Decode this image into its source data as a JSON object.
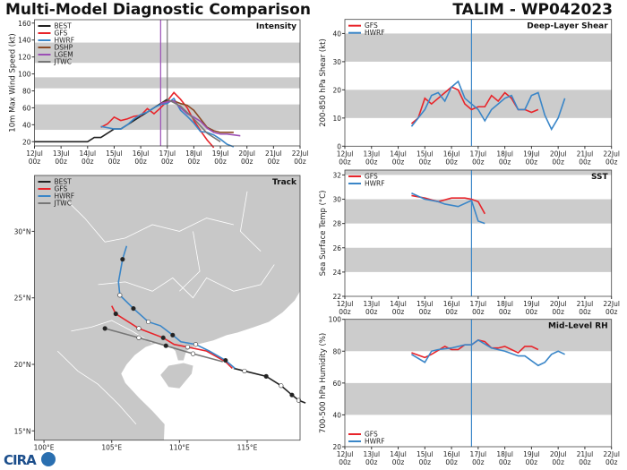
{
  "header": {
    "title": "Multi-Model Diagnostic Comparison",
    "storm": "TALIM - WP042023"
  },
  "logo": "CIRA",
  "colors": {
    "BEST": "#222222",
    "GFS": "#e8242a",
    "HWRF": "#3a86c8",
    "DSHP": "#8b4a25",
    "LGEM": "#9b4fb5",
    "JTWC": "#777777",
    "band": "#cccccc"
  },
  "x_ticks": [
    "12Jul 00z",
    "13Jul 00z",
    "14Jul 00z",
    "15Jul 00z",
    "16Jul 00z",
    "17Jul 00z",
    "18Jul 00z",
    "19Jul 00z",
    "20Jul 00z",
    "21Jul 00z",
    "22Jul 00z"
  ],
  "chart_data": [
    {
      "type": "line",
      "panel": "intensity",
      "title": "Intensity",
      "ylabel": "10m Max Wind Speed (kt)",
      "ylim": [
        15,
        164
      ],
      "yticks": [
        20,
        40,
        60,
        80,
        100,
        120,
        140,
        160
      ],
      "bands": [
        [
          34,
          64
        ],
        [
          83,
          96
        ],
        [
          113,
          137
        ]
      ],
      "vlines": [
        {
          "x": "16Jul18z",
          "color": "#9b4fb5"
        },
        {
          "x": "17Jul00z",
          "color": "#777777"
        }
      ],
      "legend": "top-left",
      "series": [
        {
          "name": "BEST",
          "x": [
            "12Jul00z",
            "13Jul00z",
            "14Jul00z",
            "14Jul06z",
            "14Jul12z",
            "14Jul18z",
            "15Jul00z",
            "15Jul06z",
            "15Jul12z",
            "15Jul18z",
            "16Jul00z",
            "16Jul06z",
            "16Jul12z",
            "16Jul18z",
            "17Jul00z"
          ],
          "y": [
            20,
            20,
            20,
            25,
            25,
            30,
            35,
            35,
            40,
            45,
            50,
            55,
            60,
            65,
            70
          ]
        },
        {
          "name": "GFS",
          "x": [
            "14Jul12z",
            "14Jul18z",
            "15Jul00z",
            "15Jul06z",
            "15Jul12z",
            "15Jul18z",
            "16Jul00z",
            "16Jul06z",
            "16Jul12z",
            "16Jul18z",
            "17Jul00z",
            "17Jul06z",
            "17Jul12z",
            "17Jul18z",
            "18Jul00z",
            "18Jul06z",
            "18Jul12z",
            "18Jul18z"
          ],
          "y": [
            37,
            41,
            49,
            45,
            47,
            50,
            51,
            59,
            53,
            60,
            68,
            78,
            70,
            60,
            45,
            33,
            22,
            13
          ]
        },
        {
          "name": "HWRF",
          "x": [
            "14Jul12z",
            "15Jul00z",
            "15Jul06z",
            "15Jul12z",
            "15Jul18z",
            "16Jul00z",
            "16Jul06z",
            "16Jul12z",
            "16Jul18z",
            "17Jul00z",
            "17Jul06z",
            "17Jul12z",
            "17Jul18z",
            "18Jul00z",
            "18Jul06z",
            "18Jul12z",
            "18Jul18z",
            "19Jul00z",
            "19Jul06z",
            "19Jul12z"
          ],
          "y": [
            38,
            35,
            35,
            40,
            47,
            52,
            55,
            60,
            64,
            65,
            71,
            57,
            50,
            42,
            32,
            31,
            28,
            23,
            17,
            14
          ]
        },
        {
          "name": "DSHP",
          "x": [
            "16Jul18z",
            "17Jul00z",
            "17Jul06z",
            "17Jul12z",
            "17Jul18z",
            "18Jul00z",
            "18Jul06z",
            "18Jul12z",
            "18Jul18z",
            "19Jul00z",
            "19Jul06z",
            "19Jul12z"
          ],
          "y": [
            65,
            68,
            68,
            65,
            63,
            57,
            47,
            37,
            33,
            31,
            31,
            31
          ]
        },
        {
          "name": "LGEM",
          "x": [
            "16Jul18z",
            "17Jul00z",
            "17Jul06z",
            "17Jul12z",
            "17Jul18z",
            "18Jul00z",
            "18Jul06z",
            "18Jul12z",
            "18Jul18z",
            "19Jul00z",
            "19Jul06z",
            "19Jul12z",
            "19Jul18z"
          ],
          "y": [
            65,
            67,
            68,
            60,
            53,
            49,
            44,
            36,
            31,
            29,
            29,
            28,
            27
          ]
        },
        {
          "name": "JTWC",
          "x": [
            "17Jul00z",
            "17Jul12z",
            "18Jul00z",
            "18Jul12z",
            "19Jul00z"
          ],
          "y": [
            70,
            62,
            47,
            30,
            20
          ]
        }
      ]
    },
    {
      "type": "line",
      "panel": "shear",
      "title": "Deep-Layer Shear",
      "ylabel": "200-850 hPa Shear (kt)",
      "ylim": [
        0,
        45
      ],
      "yticks": [
        0,
        10,
        20,
        30,
        40
      ],
      "bands": [
        [
          10,
          20
        ],
        [
          30,
          40
        ]
      ],
      "vlines": [
        {
          "x": "16Jul18z",
          "color": "#3a86c8"
        }
      ],
      "legend": "top-left",
      "series": [
        {
          "name": "GFS",
          "x": [
            "14Jul12z",
            "14Jul18z",
            "15Jul00z",
            "15Jul06z",
            "15Jul12z",
            "15Jul18z",
            "16Jul00z",
            "16Jul06z",
            "16Jul12z",
            "16Jul18z",
            "17Jul00z",
            "17Jul06z",
            "17Jul12z",
            "17Jul18z",
            "18Jul00z",
            "18Jul06z",
            "18Jul12z",
            "18Jul18z",
            "19Jul00z",
            "19Jul06z"
          ],
          "y": [
            8,
            10,
            17,
            15,
            17,
            19,
            21,
            20,
            15,
            13,
            14,
            14,
            18,
            16,
            19,
            17,
            13,
            13,
            12,
            13
          ]
        },
        {
          "name": "HWRF",
          "x": [
            "14Jul12z",
            "14Jul18z",
            "15Jul00z",
            "15Jul06z",
            "15Jul12z",
            "15Jul18z",
            "16Jul00z",
            "16Jul06z",
            "16Jul12z",
            "16Jul18z",
            "17Jul00z",
            "17Jul06z",
            "17Jul12z",
            "17Jul18z",
            "18Jul00z",
            "18Jul06z",
            "18Jul12z",
            "18Jul18z",
            "19Jul00z",
            "19Jul06z",
            "19Jul12z",
            "19Jul18z",
            "20Jul00z",
            "20Jul06z"
          ],
          "y": [
            7,
            10,
            13,
            18,
            19,
            16,
            21,
            23,
            17,
            15,
            13,
            9,
            13,
            15,
            17,
            18,
            13,
            13,
            18,
            19,
            11,
            6,
            10,
            17
          ]
        }
      ]
    },
    {
      "type": "line",
      "panel": "sst",
      "title": "SST",
      "ylabel": "Sea Surface Temp (°C)",
      "ylim": [
        22,
        32.4
      ],
      "yticks": [
        22,
        24,
        26,
        28,
        30,
        32
      ],
      "bands": [
        [
          24,
          26
        ],
        [
          28,
          30
        ],
        [
          32,
          32.4
        ]
      ],
      "vlines": [
        {
          "x": "16Jul18z",
          "color": "#3a86c8"
        }
      ],
      "legend": "top-left",
      "series": [
        {
          "name": "GFS",
          "x": [
            "14Jul12z",
            "15Jul00z",
            "15Jul12z",
            "16Jul00z",
            "16Jul12z",
            "16Jul18z",
            "17Jul00z",
            "17Jul06z"
          ],
          "y": [
            30.3,
            30.1,
            29.8,
            30.1,
            30.1,
            30.0,
            29.8,
            28.8
          ]
        },
        {
          "name": "HWRF",
          "x": [
            "14Jul12z",
            "15Jul00z",
            "15Jul12z",
            "15Jul18z",
            "16Jul06z",
            "16Jul18z",
            "17Jul00z",
            "17Jul06z"
          ],
          "y": [
            30.5,
            30.0,
            29.8,
            29.6,
            29.4,
            29.9,
            28.2,
            28.0
          ]
        }
      ]
    },
    {
      "type": "line",
      "panel": "rh",
      "title": "Mid-Level RH",
      "ylabel": "700-500 hPa Humidity (%)",
      "ylim": [
        20,
        100
      ],
      "yticks": [
        20,
        40,
        60,
        80,
        100
      ],
      "bands": [
        [
          40,
          60
        ],
        [
          80,
          100
        ]
      ],
      "vlines": [
        {
          "x": "16Jul18z",
          "color": "#3a86c8"
        }
      ],
      "legend": "bottom-left",
      "series": [
        {
          "name": "GFS",
          "x": [
            "14Jul12z",
            "15Jul00z",
            "15Jul06z",
            "15Jul18z",
            "16Jul00z",
            "16Jul06z",
            "16Jul12z",
            "16Jul18z",
            "17Jul00z",
            "17Jul06z",
            "17Jul12z",
            "17Jul18z",
            "18Jul00z",
            "18Jul06z",
            "18Jul12z",
            "18Jul18z",
            "19Jul00z",
            "19Jul06z"
          ],
          "y": [
            79,
            76,
            78,
            83,
            81,
            81,
            84,
            84,
            87,
            86,
            82,
            82,
            83,
            81,
            79,
            83,
            83,
            81
          ]
        },
        {
          "name": "HWRF",
          "x": [
            "14Jul12z",
            "15Jul00z",
            "15Jul06z",
            "15Jul12z",
            "16Jul00z",
            "16Jul12z",
            "16Jul18z",
            "17Jul00z",
            "17Jul12z",
            "18Jul00z",
            "18Jul12z",
            "18Jul18z",
            "19Jul06z",
            "19Jul12z",
            "19Jul18z",
            "20Jul00z",
            "20Jul06z"
          ],
          "y": [
            78,
            73,
            80,
            81,
            82,
            84,
            84,
            87,
            82,
            80,
            77,
            77,
            71,
            73,
            78,
            80,
            78
          ]
        }
      ]
    },
    {
      "type": "scatter",
      "panel": "track",
      "title": "Track",
      "xlim": [
        99.3,
        118.9
      ],
      "ylim": [
        14.3,
        34.2
      ],
      "xticks": [
        {
          "v": 100,
          "label": "100°E"
        },
        {
          "v": 105,
          "label": "105°E"
        },
        {
          "v": 110,
          "label": "110°E"
        },
        {
          "v": 115,
          "label": "115°E"
        }
      ],
      "yticks": [
        {
          "v": 15,
          "label": "15°N"
        },
        {
          "v": 20,
          "label": "20°N"
        },
        {
          "v": 25,
          "label": "25°N"
        },
        {
          "v": 30,
          "label": "30°N"
        }
      ],
      "legend": "top-left",
      "series": [
        {
          "name": "BEST",
          "lon": [
            119.3,
            118.8,
            118.3,
            117.5,
            116.4,
            114.8,
            114.0
          ],
          "lat": [
            17.1,
            17.3,
            17.7,
            18.4,
            19.1,
            19.5,
            19.7
          ],
          "markers": [
            [
              118.8,
              17.3,
              "open"
            ],
            [
              118.3,
              17.7,
              "filled"
            ],
            [
              117.5,
              18.4,
              "open"
            ],
            [
              116.4,
              19.1,
              "filled"
            ],
            [
              114.8,
              19.5,
              "open"
            ]
          ]
        },
        {
          "name": "GFS",
          "lon": [
            113.9,
            113.4,
            112.0,
            110.6,
            109.6,
            108.8,
            107.0,
            105.3,
            105.0
          ],
          "lat": [
            19.7,
            20.2,
            21.0,
            21.3,
            21.5,
            22.0,
            22.7,
            23.8,
            24.4
          ],
          "markers": [
            [
              110.6,
              21.3,
              "open"
            ],
            [
              108.8,
              22.0,
              "filled"
            ],
            [
              107.0,
              22.7,
              "open"
            ],
            [
              105.3,
              23.8,
              "filled"
            ]
          ]
        },
        {
          "name": "HWRF",
          "lon": [
            114.1,
            113.4,
            112.2,
            111.2,
            110.1,
            109.5,
            108.6,
            107.7,
            106.6,
            105.6,
            105.5,
            105.8,
            106.1
          ],
          "lat": [
            19.7,
            20.3,
            21.0,
            21.5,
            21.7,
            22.2,
            22.9,
            23.2,
            24.2,
            25.2,
            26.2,
            27.9,
            28.9
          ],
          "markers": [
            [
              113.4,
              20.3,
              "filled"
            ],
            [
              111.2,
              21.5,
              "open"
            ],
            [
              109.5,
              22.2,
              "filled"
            ],
            [
              107.7,
              23.2,
              "open"
            ],
            [
              106.6,
              24.2,
              "filled"
            ],
            [
              105.6,
              25.2,
              "open"
            ],
            [
              105.8,
              27.9,
              "filled"
            ]
          ]
        },
        {
          "name": "JTWC",
          "lon": [
            113.2,
            111.0,
            109.0,
            107.0,
            104.5
          ],
          "lat": [
            20.2,
            20.8,
            21.4,
            22.0,
            22.7
          ],
          "markers": [
            [
              111.0,
              20.8,
              "open"
            ],
            [
              109.0,
              21.4,
              "filled"
            ],
            [
              107.0,
              22.0,
              "open"
            ],
            [
              104.5,
              22.7,
              "filled"
            ]
          ]
        }
      ]
    }
  ]
}
